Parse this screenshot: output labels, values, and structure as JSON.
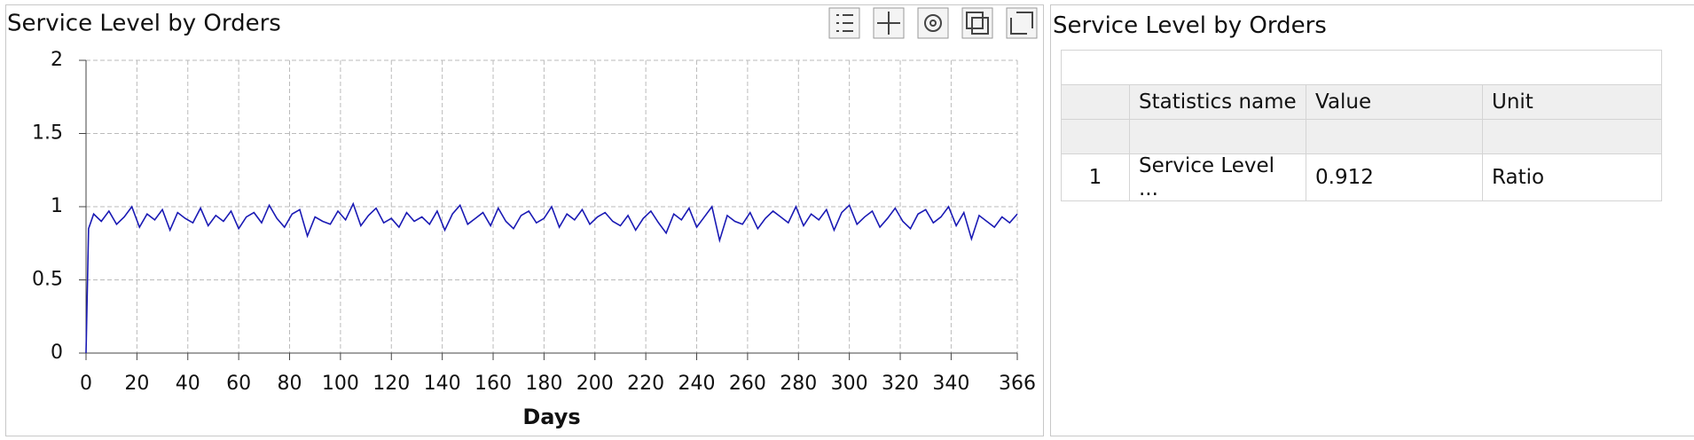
{
  "chart_data": {
    "type": "line",
    "title": "Service Level by Orders",
    "x_label": "Days",
    "x": [
      0,
      1,
      3,
      6,
      9,
      12,
      15,
      18,
      21,
      24,
      27,
      30,
      33,
      36,
      39,
      42,
      45,
      48,
      51,
      54,
      57,
      60,
      63,
      66,
      69,
      72,
      75,
      78,
      81,
      84,
      87,
      90,
      93,
      96,
      99,
      102,
      105,
      108,
      111,
      114,
      117,
      120,
      123,
      126,
      129,
      132,
      135,
      138,
      141,
      144,
      147,
      150,
      153,
      156,
      159,
      162,
      165,
      168,
      171,
      174,
      177,
      180,
      183,
      186,
      189,
      192,
      195,
      198,
      201,
      204,
      207,
      210,
      213,
      216,
      219,
      222,
      225,
      228,
      231,
      234,
      237,
      240,
      243,
      246,
      249,
      252,
      255,
      258,
      261,
      264,
      267,
      270,
      273,
      276,
      279,
      282,
      285,
      288,
      291,
      294,
      297,
      300,
      303,
      306,
      309,
      312,
      315,
      318,
      321,
      324,
      327,
      330,
      333,
      336,
      339,
      342,
      345,
      348,
      351,
      354,
      357,
      360,
      363,
      366
    ],
    "series": [
      {
        "color": "#1a1ab4",
        "values": [
          0,
          0.85,
          0.95,
          0.9,
          0.97,
          0.88,
          0.93,
          1.0,
          0.86,
          0.95,
          0.91,
          0.98,
          0.84,
          0.96,
          0.92,
          0.89,
          0.99,
          0.87,
          0.94,
          0.9,
          0.97,
          0.85,
          0.93,
          0.96,
          0.89,
          1.01,
          0.92,
          0.86,
          0.95,
          0.98,
          0.8,
          0.93,
          0.9,
          0.88,
          0.97,
          0.91,
          1.02,
          0.87,
          0.94,
          0.99,
          0.89,
          0.92,
          0.86,
          0.96,
          0.9,
          0.93,
          0.88,
          0.97,
          0.84,
          0.95,
          1.01,
          0.88,
          0.92,
          0.96,
          0.87,
          0.99,
          0.9,
          0.85,
          0.94,
          0.97,
          0.89,
          0.92,
          1.0,
          0.86,
          0.95,
          0.91,
          0.98,
          0.88,
          0.93,
          0.96,
          0.9,
          0.87,
          0.94,
          0.84,
          0.92,
          0.97,
          0.89,
          0.82,
          0.95,
          0.91,
          0.99,
          0.86,
          0.93,
          1.0,
          0.77,
          0.94,
          0.9,
          0.88,
          0.96,
          0.85,
          0.92,
          0.97,
          0.93,
          0.89,
          1.0,
          0.87,
          0.95,
          0.91,
          0.98,
          0.84,
          0.96,
          1.01,
          0.88,
          0.93,
          0.97,
          0.86,
          0.92,
          0.99,
          0.9,
          0.85,
          0.95,
          0.98,
          0.89,
          0.93,
          1.0,
          0.87,
          0.96,
          0.78,
          0.94,
          0.9,
          0.86,
          0.93,
          0.89,
          0.95
        ]
      }
    ],
    "xlim": [
      0,
      366
    ],
    "xticks": [
      0,
      20,
      40,
      60,
      80,
      100,
      120,
      140,
      160,
      180,
      200,
      220,
      240,
      260,
      280,
      300,
      320,
      340,
      366
    ],
    "ylim": [
      0,
      2
    ],
    "yticks": [
      0,
      0.5,
      1,
      1.5,
      2
    ],
    "grid": true
  },
  "table": {
    "title": "Service Level by Orders",
    "headers": [
      "Statistics name",
      "Value",
      "Unit"
    ],
    "rows": [
      [
        "1",
        "Service Level ...",
        "0.912",
        "Ratio"
      ]
    ]
  }
}
